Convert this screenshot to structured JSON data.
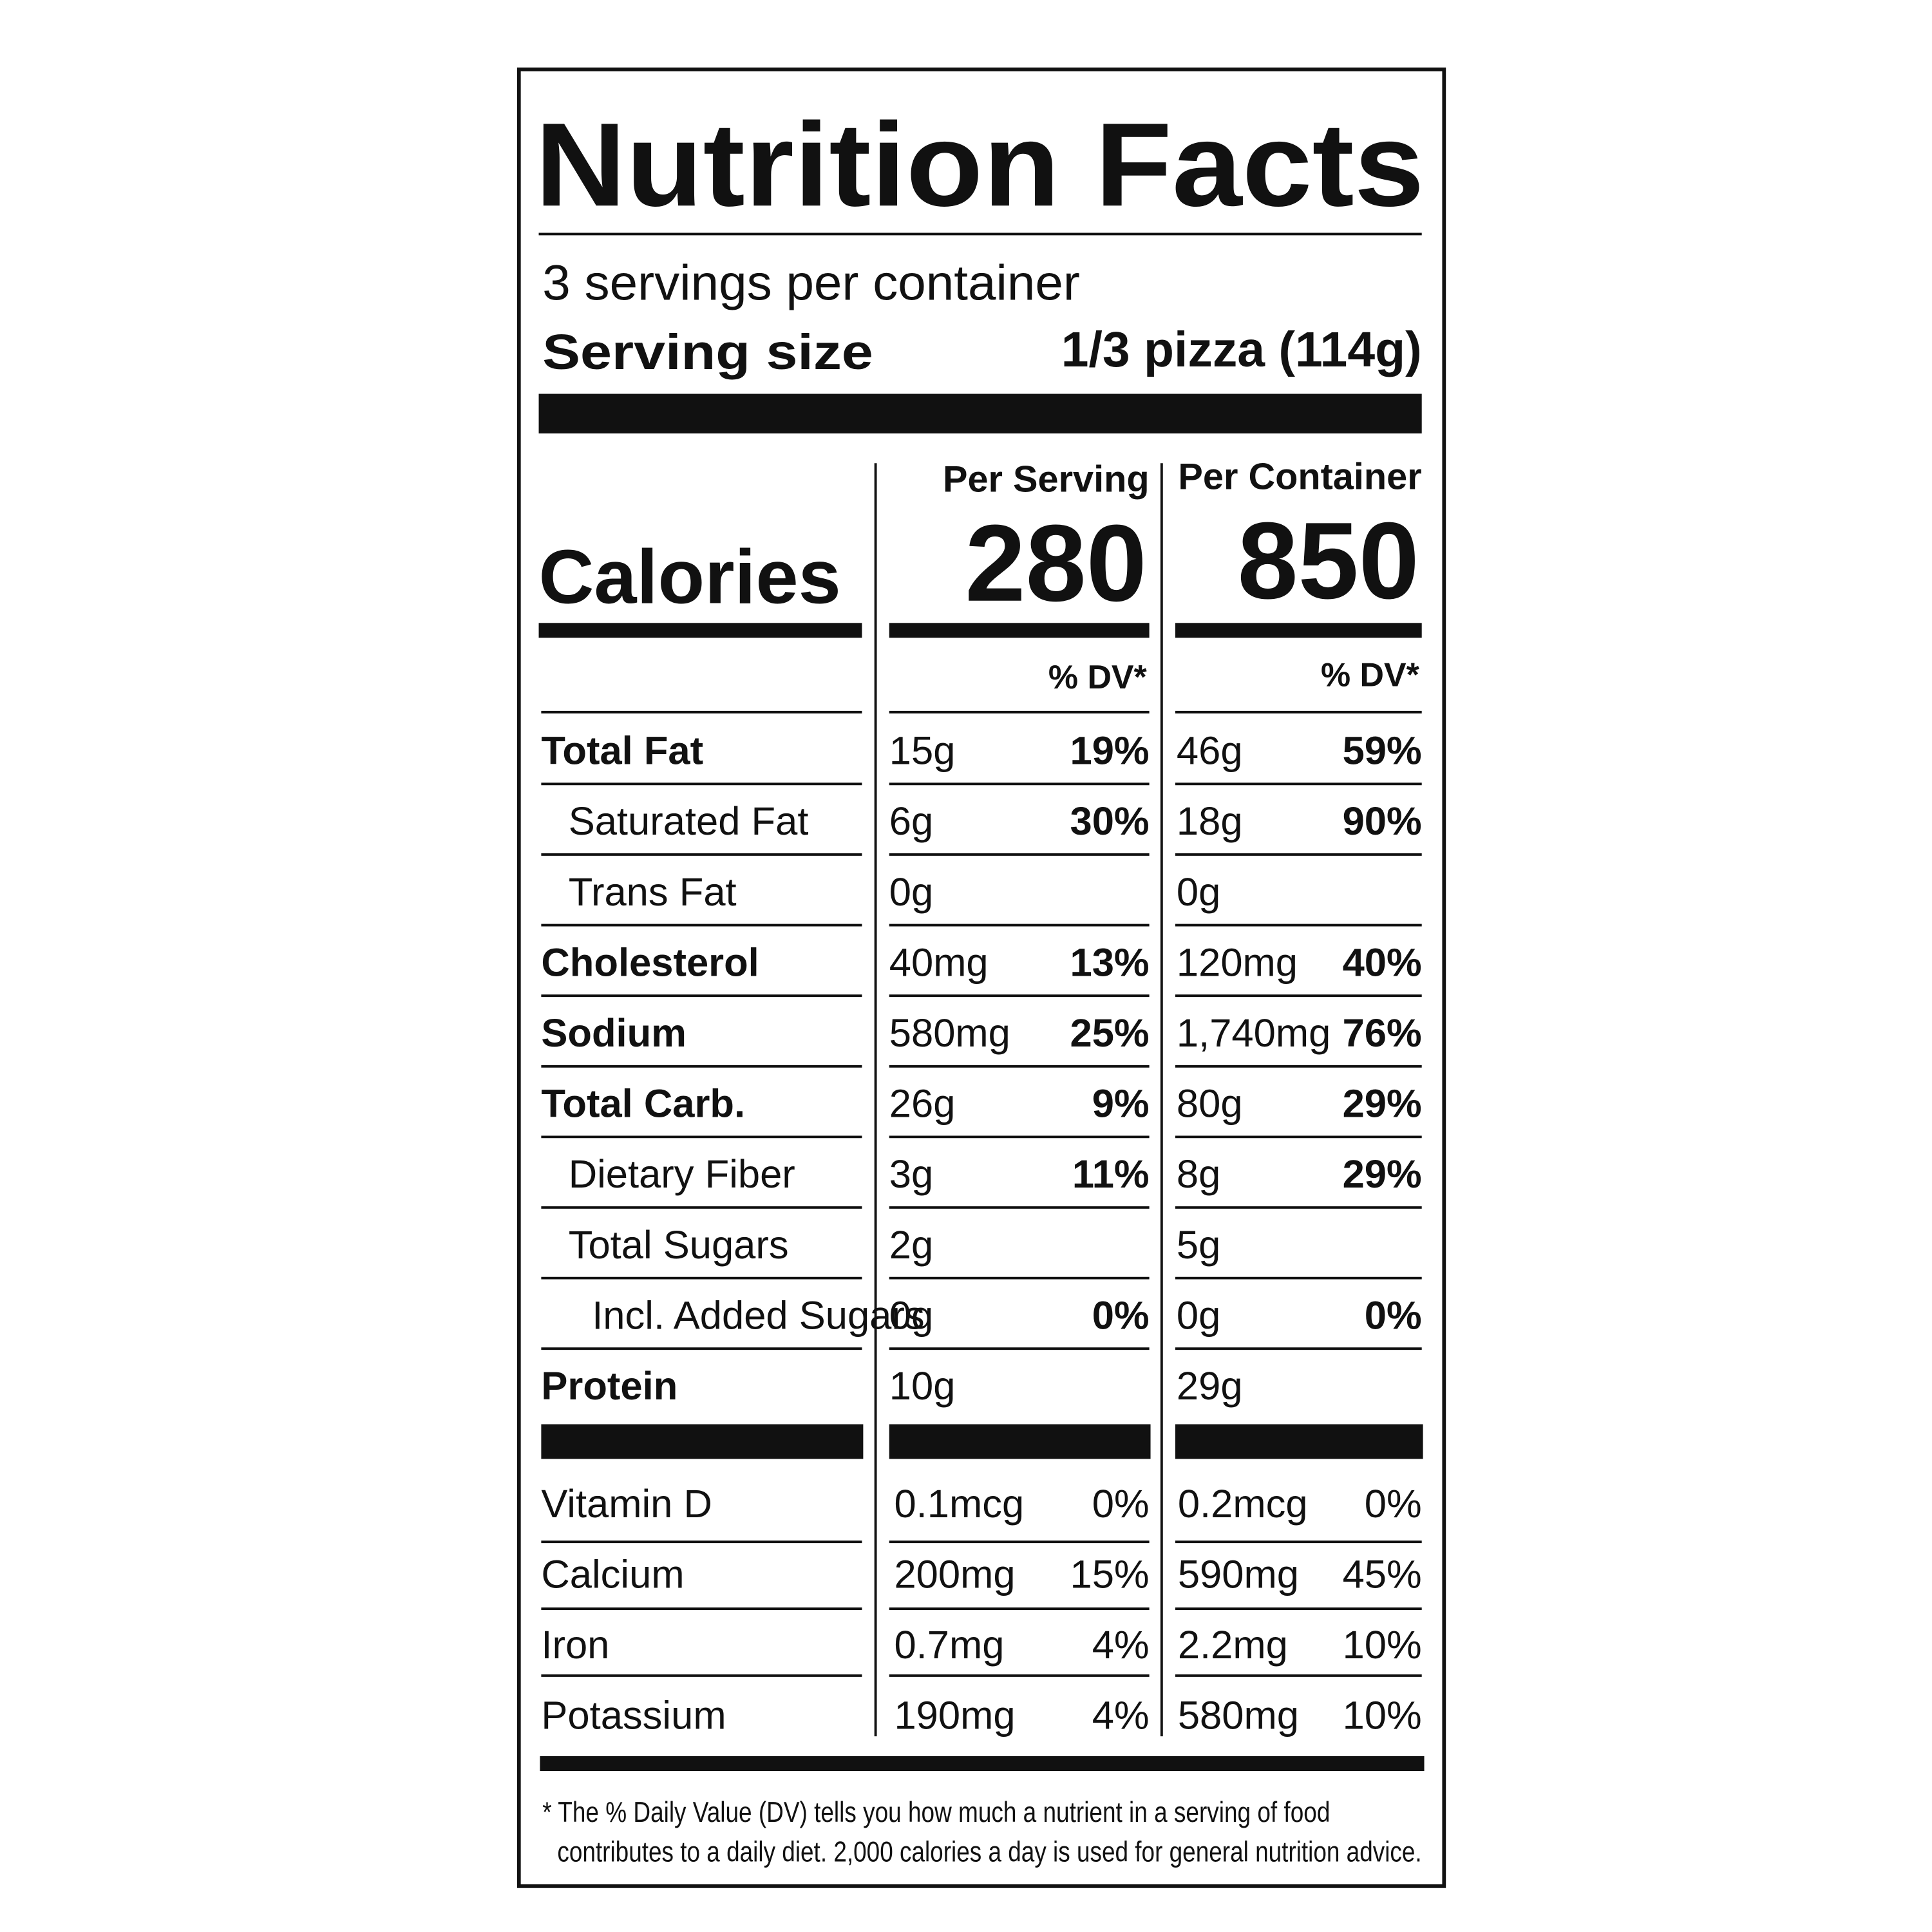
{
  "header": {
    "title": "Nutrition Facts",
    "servings": "3 servings per container",
    "serving_size_label": "Serving size",
    "serving_size": "1/3 pizza (114g)"
  },
  "columns": [
    "Per Serving",
    "Per Container"
  ],
  "calories": {
    "label": "Calories",
    "values": [
      280,
      850
    ]
  },
  "dv_header": "% DV*",
  "nutrients": [
    {
      "name": "Total Fat",
      "bold": true,
      "level": 0,
      "serving": {
        "amount": "15g",
        "dv": "19%"
      },
      "container": {
        "amount": "46g",
        "dv": "59%"
      }
    },
    {
      "name": "Saturated Fat",
      "bold": false,
      "level": 1,
      "serving": {
        "amount": "6g",
        "dv": "30%"
      },
      "container": {
        "amount": "18g",
        "dv": "90%"
      }
    },
    {
      "name": "Trans Fat",
      "bold": false,
      "level": 1,
      "serving": {
        "amount": "0g"
      },
      "container": {
        "amount": "0g"
      }
    },
    {
      "name": "Cholesterol",
      "bold": true,
      "level": 0,
      "serving": {
        "amount": "40mg",
        "dv": "13%"
      },
      "container": {
        "amount": "120mg",
        "dv": "40%"
      }
    },
    {
      "name": "Sodium",
      "bold": true,
      "level": 0,
      "serving": {
        "amount": "580mg",
        "dv": "25%"
      },
      "container": {
        "amount": "1,740mg",
        "dv": "76%"
      }
    },
    {
      "name": "Total Carb.",
      "bold": true,
      "level": 0,
      "serving": {
        "amount": "26g",
        "dv": "9%"
      },
      "container": {
        "amount": "80g",
        "dv": "29%"
      }
    },
    {
      "name": "Dietary Fiber",
      "bold": false,
      "level": 1,
      "serving": {
        "amount": "3g",
        "dv": "11%"
      },
      "container": {
        "amount": "8g",
        "dv": "29%"
      }
    },
    {
      "name": "Total Sugars",
      "bold": false,
      "level": 1,
      "serving": {
        "amount": "2g"
      },
      "container": {
        "amount": "5g"
      }
    },
    {
      "name": "Incl. Added Sugars",
      "bold": false,
      "level": 2,
      "serving": {
        "amount": "0g",
        "dv": "0%"
      },
      "container": {
        "amount": "0g",
        "dv": "0%"
      }
    },
    {
      "name": "Protein",
      "bold": true,
      "level": 0,
      "serving": {
        "amount": "10g"
      },
      "container": {
        "amount": "29g"
      }
    }
  ],
  "vitamins": [
    {
      "name": "Vitamin D",
      "serving": {
        "amount": "0.1mcg",
        "dv": "0%"
      },
      "container": {
        "amount": "0.2mcg",
        "dv": "0%"
      }
    },
    {
      "name": "Calcium",
      "serving": {
        "amount": "200mg",
        "dv": "15%"
      },
      "container": {
        "amount": "590mg",
        "dv": "45%"
      }
    },
    {
      "name": "Iron",
      "serving": {
        "amount": "0.7mg",
        "dv": "4%"
      },
      "container": {
        "amount": "2.2mg",
        "dv": "10%"
      }
    },
    {
      "name": "Potassium",
      "serving": {
        "amount": "190mg",
        "dv": "4%"
      },
      "container": {
        "amount": "580mg",
        "dv": "10%"
      }
    }
  ],
  "footnote": [
    "* The % Daily Value (DV) tells you how much a nutrient in a serving of food",
    "contributes to a daily diet. 2,000 calories a day is used for general nutrition advice."
  ]
}
